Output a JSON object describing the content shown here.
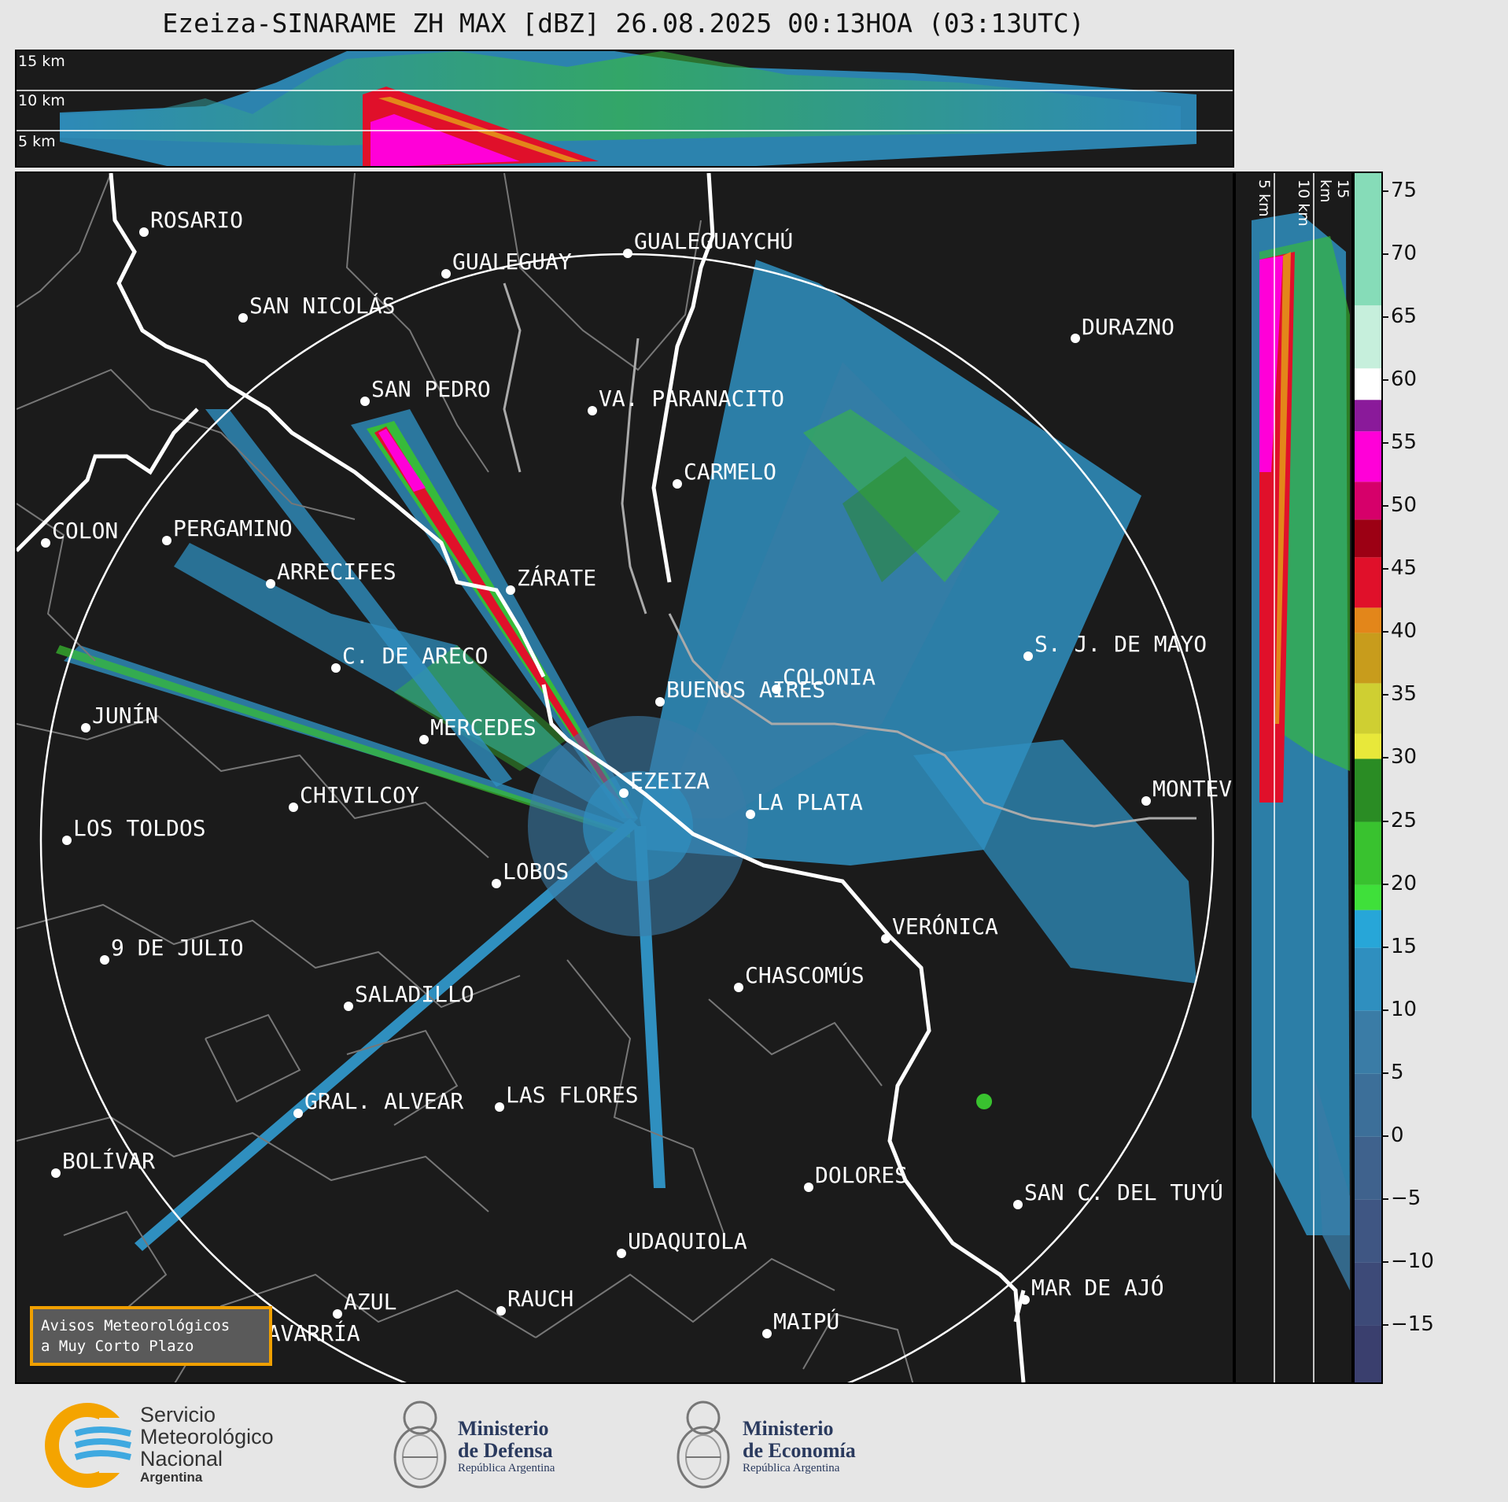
{
  "title": "Ezeiza-SINARAME ZH MAX [dBZ] 26.08.2025 00:13HOA (03:13UTC)",
  "top_panel": {
    "altitude_labels": [
      "15 km",
      "10 km",
      "5 km"
    ]
  },
  "side_panel": {
    "altitude_labels": [
      "5 km",
      "10 km",
      "15 km"
    ]
  },
  "colorbar": {
    "unit": "dBZ",
    "ticks": [
      "75",
      "70",
      "65",
      "60",
      "55",
      "50",
      "45",
      "40",
      "35",
      "30",
      "25",
      "20",
      "15",
      "10",
      "5",
      "0",
      "−5",
      "−10",
      "−15"
    ],
    "range": [
      -19.5,
      76.5
    ],
    "stops": [
      {
        "from": -19.5,
        "to": -15,
        "color": "#3a3f6e"
      },
      {
        "from": -15,
        "to": -10,
        "color": "#3d4a78"
      },
      {
        "from": -10,
        "to": -5,
        "color": "#3f5683"
      },
      {
        "from": -5,
        "to": 0,
        "color": "#3f628d"
      },
      {
        "from": 0,
        "to": 5,
        "color": "#3c6f99"
      },
      {
        "from": 5,
        "to": 10,
        "color": "#3a7ca6"
      },
      {
        "from": 10,
        "to": 15,
        "color": "#2f8fbf"
      },
      {
        "from": 15,
        "to": 18,
        "color": "#27a6d8"
      },
      {
        "from": 18,
        "to": 20,
        "color": "#3fe03a"
      },
      {
        "from": 20,
        "to": 25,
        "color": "#39c22f"
      },
      {
        "from": 25,
        "to": 30,
        "color": "#2a8c24"
      },
      {
        "from": 30,
        "to": 32,
        "color": "#e8e83a"
      },
      {
        "from": 32,
        "to": 36,
        "color": "#cfcf32"
      },
      {
        "from": 36,
        "to": 40,
        "color": "#c89c1c"
      },
      {
        "from": 40,
        "to": 42,
        "color": "#e3861a"
      },
      {
        "from": 42,
        "to": 46,
        "color": "#e0102a"
      },
      {
        "from": 46,
        "to": 49,
        "color": "#9c0014"
      },
      {
        "from": 49,
        "to": 52,
        "color": "#d6006a"
      },
      {
        "from": 52,
        "to": 56,
        "color": "#ff00d8"
      },
      {
        "from": 56,
        "to": 58.5,
        "color": "#8a1a9a"
      },
      {
        "from": 58.5,
        "to": 61,
        "color": "#ffffff"
      },
      {
        "from": 61,
        "to": 66,
        "color": "#c6efdc"
      },
      {
        "from": 66,
        "to": 76.5,
        "color": "#86dcb8"
      }
    ]
  },
  "map": {
    "cities": [
      {
        "name": "ROSARIO"
      },
      {
        "name": "GUALEGUAYCHÚ"
      },
      {
        "name": "GUALEGUAY"
      },
      {
        "name": "SAN NICOLÁS"
      },
      {
        "name": "DURAZNO"
      },
      {
        "name": "SAN PEDRO"
      },
      {
        "name": "VA. PARANACITO"
      },
      {
        "name": "COLON"
      },
      {
        "name": "PERGAMINO"
      },
      {
        "name": "CARMELO"
      },
      {
        "name": "ARRECIFES"
      },
      {
        "name": "ZÁRATE"
      },
      {
        "name": "S. J. DE MAYO"
      },
      {
        "name": "C. DE ARECO"
      },
      {
        "name": "COLONIA"
      },
      {
        "name": "JUNÍN"
      },
      {
        "name": "MERCEDES"
      },
      {
        "name": "BUENOS AIRES"
      },
      {
        "name": "EZEIZA"
      },
      {
        "name": "MONTEVIDEO"
      },
      {
        "name": "CHIVILCOY"
      },
      {
        "name": "LA PLATA"
      },
      {
        "name": "LOS TOLDOS"
      },
      {
        "name": "LOBOS"
      },
      {
        "name": "VERÓNICA"
      },
      {
        "name": "9 DE JULIO"
      },
      {
        "name": "CHASCOMÚS"
      },
      {
        "name": "SALADILLO"
      },
      {
        "name": "GRAL. ALVEAR"
      },
      {
        "name": "LAS FLORES"
      },
      {
        "name": "BOLÍVAR"
      },
      {
        "name": "DOLORES"
      },
      {
        "name": "SAN C. DEL TUYÚ"
      },
      {
        "name": "UDAQUIOLA"
      },
      {
        "name": "MAR DE AJÓ"
      },
      {
        "name": "AZUL"
      },
      {
        "name": "RAUCH"
      },
      {
        "name": "MAIPÚ"
      },
      {
        "name": "OLAVARRÍA"
      }
    ]
  },
  "alerts_button": {
    "line1": "Avisos Meteorológicos",
    "line2": "a Muy Corto Plazo"
  },
  "footer": {
    "smn": {
      "line1": "Servicio",
      "line2": "Meteorológico",
      "line3": "Nacional",
      "line4": "Argentina"
    },
    "defensa": {
      "line1": "Ministerio",
      "line2": "de Defensa",
      "line3": "República Argentina"
    },
    "economia": {
      "line1": "Ministerio",
      "line2": "de Economía",
      "line3": "República Argentina"
    }
  }
}
